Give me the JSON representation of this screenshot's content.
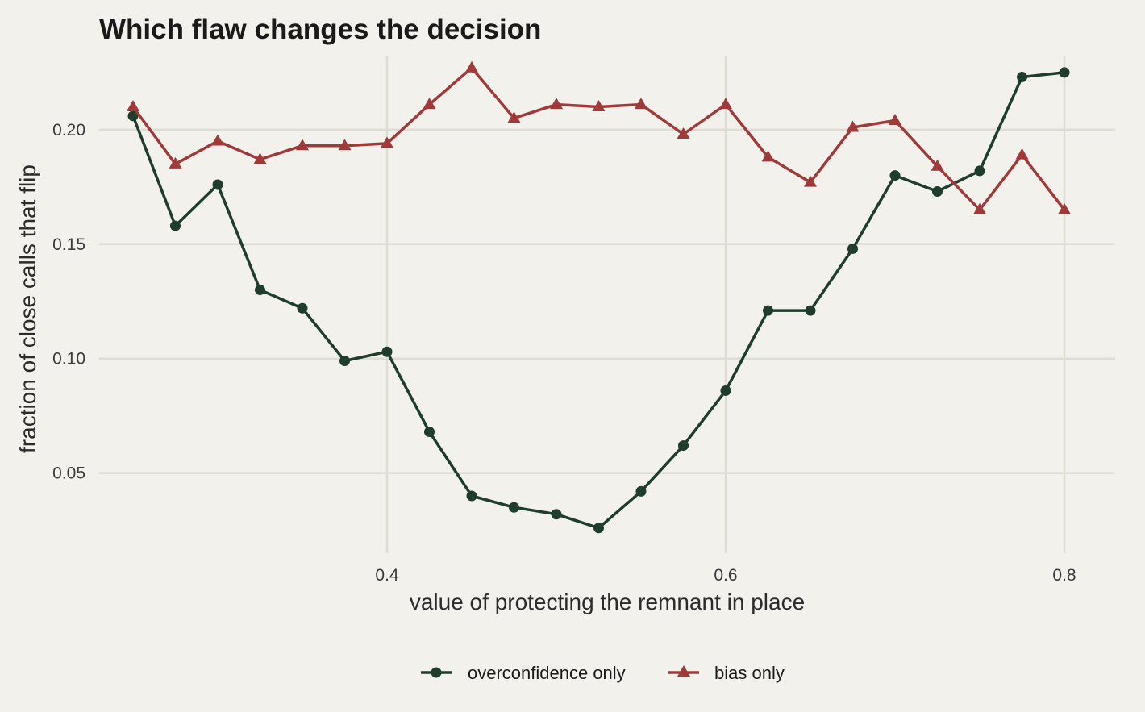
{
  "chart_data": {
    "type": "line",
    "title": "Which flaw changes the decision",
    "xlabel": "value of protecting the remnant in place",
    "ylabel": "fraction of close calls that flip",
    "xlim": [
      0.23,
      0.83
    ],
    "ylim": [
      0.015,
      0.232
    ],
    "xticks": [
      0.4,
      0.6,
      0.8
    ],
    "xtick_labels": [
      "0.4",
      "0.6",
      "0.8"
    ],
    "yticks": [
      0.05,
      0.1,
      0.15,
      0.2
    ],
    "ytick_labels": [
      "0.05",
      "0.10",
      "0.15",
      "0.20"
    ],
    "grid": true,
    "legend_position": "bottom",
    "x": [
      0.25,
      0.275,
      0.3,
      0.325,
      0.35,
      0.375,
      0.4,
      0.425,
      0.45,
      0.475,
      0.5,
      0.525,
      0.55,
      0.575,
      0.6,
      0.625,
      0.65,
      0.675,
      0.7,
      0.725,
      0.75,
      0.775,
      0.8
    ],
    "series": [
      {
        "name": "overconfidence only",
        "color": "#1f3d2b",
        "marker": "circle",
        "values": [
          0.206,
          0.158,
          0.176,
          0.13,
          0.122,
          0.099,
          0.103,
          0.068,
          0.04,
          0.035,
          0.032,
          0.026,
          0.042,
          0.062,
          0.086,
          0.121,
          0.121,
          0.148,
          0.18,
          0.173,
          0.182,
          0.223,
          0.225
        ]
      },
      {
        "name": "bias only",
        "color": "#a03a3a",
        "marker": "triangle",
        "values": [
          0.21,
          0.185,
          0.195,
          0.187,
          0.193,
          0.193,
          0.194,
          0.211,
          0.227,
          0.205,
          0.211,
          0.21,
          0.211,
          0.198,
          0.211,
          0.188,
          0.177,
          0.201,
          0.204,
          0.184,
          0.165,
          0.189,
          0.165
        ]
      }
    ]
  }
}
